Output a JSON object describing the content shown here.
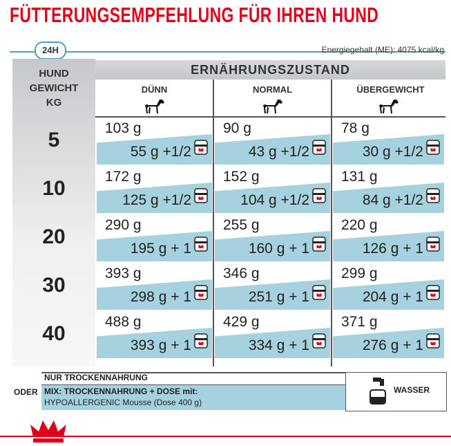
{
  "header": {
    "title": "FÜTTERUNGSEMPFEHLUNG FÜR IHREN HUND",
    "badge": "24H",
    "energy": "Energiegehalt (ME): 4075 kcal/kg"
  },
  "table": {
    "weight_header": [
      "HUND",
      "GEWICHT",
      "KG"
    ],
    "group_header": "ERNÄHRUNGSZUSTAND",
    "columns": [
      "DÜNN",
      "NORMAL",
      "ÜBERGEWICHT"
    ],
    "rows": [
      {
        "weight": "5",
        "cells": [
          {
            "dry": "103 g",
            "mix": "55 g +1/2"
          },
          {
            "dry": "90 g",
            "mix": "43 g +1/2"
          },
          {
            "dry": "78 g",
            "mix": "30 g +1/2"
          }
        ]
      },
      {
        "weight": "10",
        "cells": [
          {
            "dry": "172 g",
            "mix": "125 g +1/2"
          },
          {
            "dry": "152 g",
            "mix": "104 g +1/2"
          },
          {
            "dry": "131 g",
            "mix": "84 g +1/2"
          }
        ]
      },
      {
        "weight": "20",
        "cells": [
          {
            "dry": "290 g",
            "mix": "195 g + 1"
          },
          {
            "dry": "255 g",
            "mix": "160 g + 1"
          },
          {
            "dry": "220 g",
            "mix": "126 g + 1"
          }
        ]
      },
      {
        "weight": "30",
        "cells": [
          {
            "dry": "393 g",
            "mix": "298 g + 1"
          },
          {
            "dry": "346 g",
            "mix": "251 g + 1"
          },
          {
            "dry": "299 g",
            "mix": "204 g + 1"
          }
        ]
      },
      {
        "weight": "40",
        "cells": [
          {
            "dry": "488 g",
            "mix": "393 g + 1"
          },
          {
            "dry": "429 g",
            "mix": "334 g + 1"
          },
          {
            "dry": "371 g",
            "mix": "276 g + 1"
          }
        ]
      }
    ]
  },
  "footer": {
    "or": "ODER",
    "dry_only": "NUR TROCKENNAHRUNG",
    "mix_line1": "MIX: TROCKENNAHRUNG + DOSE mit:",
    "mix_line2": "HYPOALLERGENIC Mousse (Dose 400 g)",
    "water": "WASSER"
  }
}
